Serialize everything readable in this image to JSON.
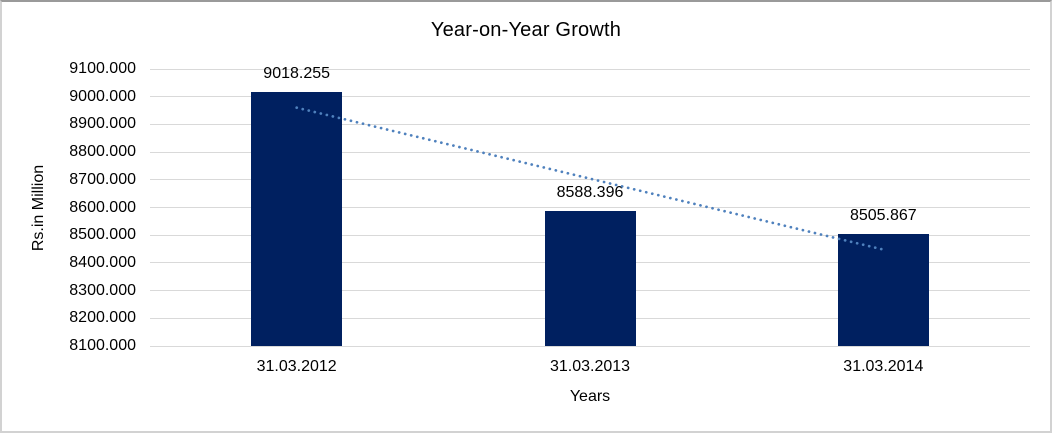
{
  "chart_data": {
    "type": "bar",
    "title": "Year-on-Year Growth",
    "categories": [
      "31.03.2012",
      "31.03.2013",
      "31.03.2014"
    ],
    "values": [
      9018.255,
      8588.396,
      8505.867
    ],
    "data_labels": [
      "9018.255",
      "8588.396",
      "8505.867"
    ],
    "xlabel": "Years",
    "ylabel": "Rs.in Million",
    "ylim": [
      8100,
      9100
    ],
    "ytick_step": 100,
    "ytick_decimals": 3,
    "grid": true,
    "legend": "none",
    "bar_color": "#002060",
    "gridline_color": "#D9D9D9",
    "trendline": {
      "type": "linear",
      "style": "dotted",
      "color": "#4F81BD",
      "endpoint_values": [
        8960.367,
        8447.979
      ]
    }
  }
}
